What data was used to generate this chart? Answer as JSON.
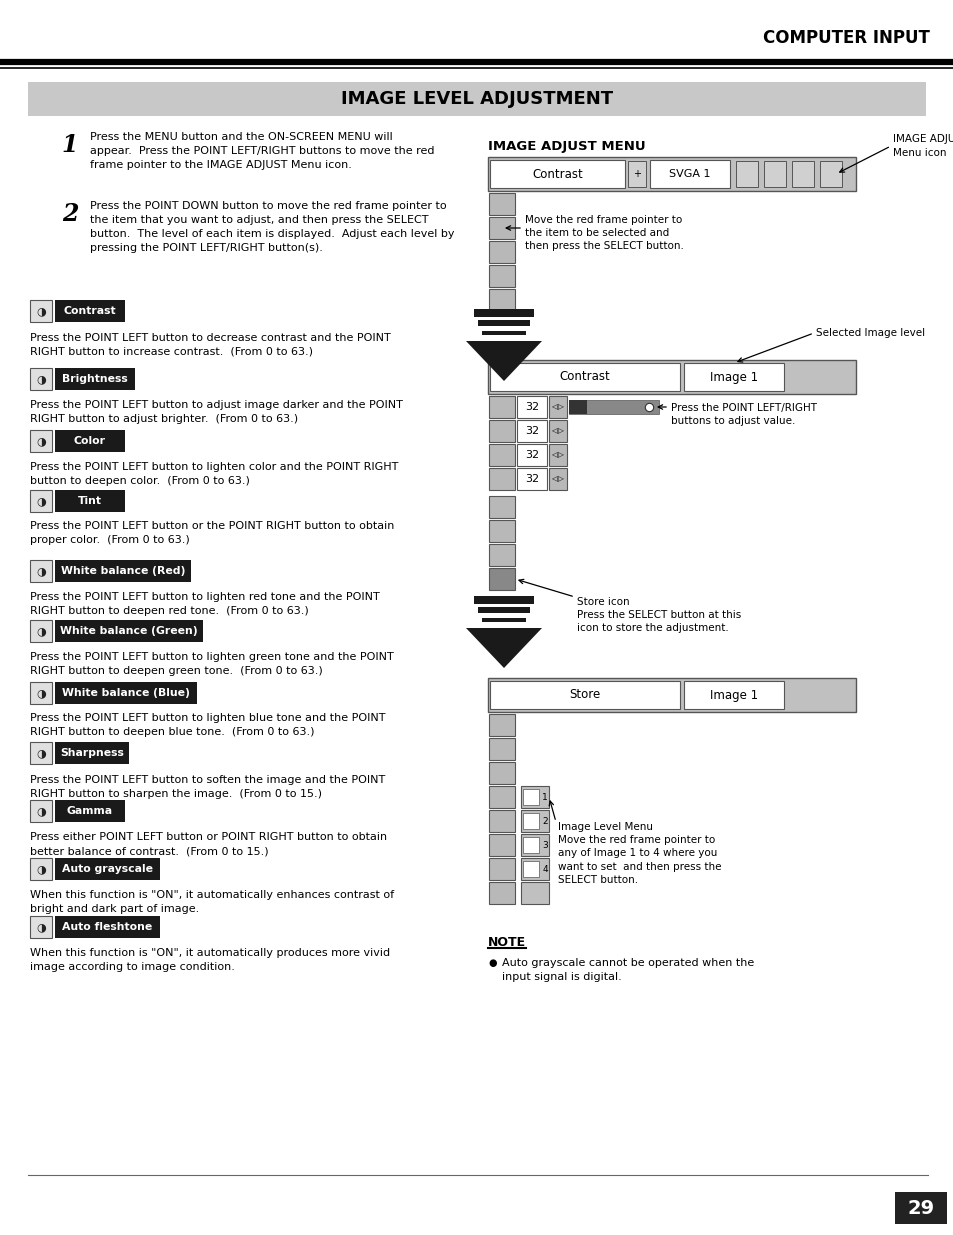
{
  "page_title": "COMPUTER INPUT",
  "section_title": "IMAGE LEVEL ADJUSTMENT",
  "step1": "Press the MENU button and the ON-SCREEN MENU will\nappear.  Press the POINT LEFT/RIGHT buttons to move the red\nframe pointer to the IMAGE ADJUST Menu icon.",
  "step2": "Press the POINT DOWN button to move the red frame pointer to\nthe item that you want to adjust, and then press the SELECT\nbutton.  The level of each item is displayed.  Adjust each level by\npressing the POINT LEFT/RIGHT button(s).",
  "items": [
    {
      "label": "Contrast",
      "desc": "Press the POINT LEFT button to decrease contrast and the POINT\nRIGHT button to increase contrast.  (From 0 to 63.)"
    },
    {
      "label": "Brightness",
      "desc": "Press the POINT LEFT button to adjust image darker and the POINT\nRIGHT button to adjust brighter.  (From 0 to 63.)"
    },
    {
      "label": "Color",
      "desc": "Press the POINT LEFT button to lighten color and the POINT RIGHT\nbutton to deepen color.  (From 0 to 63.)"
    },
    {
      "label": "Tint",
      "desc": "Press the POINT LEFT button or the POINT RIGHT button to obtain\nproper color.  (From 0 to 63.)"
    },
    {
      "label": "White balance (Red)",
      "desc": "Press the POINT LEFT button to lighten red tone and the POINT\nRIGHT button to deepen red tone.  (From 0 to 63.)"
    },
    {
      "label": "White balance (Green)",
      "desc": "Press the POINT LEFT button to lighten green tone and the POINT\nRIGHT button to deepen green tone.  (From 0 to 63.)"
    },
    {
      "label": "White balance (Blue)",
      "desc": "Press the POINT LEFT button to lighten blue tone and the POINT\nRIGHT button to deepen blue tone.  (From 0 to 63.)"
    },
    {
      "label": "Sharpness",
      "desc": "Press the POINT LEFT button to soften the image and the POINT\nRIGHT button to sharpen the image.  (From 0 to 15.)"
    },
    {
      "label": "Gamma",
      "desc": "Press either POINT LEFT button or POINT RIGHT button to obtain\nbetter balance of contrast.  (From 0 to 15.)"
    },
    {
      "label": "Auto grayscale",
      "desc": "When this function is \"ON\", it automatically enhances contrast of\nbright and dark part of image."
    },
    {
      "label": "Auto fleshtone",
      "desc": "When this function is \"ON\", it automatically produces more vivid\nimage according to image condition."
    }
  ],
  "right_title": "IMAGE ADJUST MENU",
  "note_title": "NOTE",
  "note_text": "Auto grayscale cannot be operated when the\ninput signal is digital.",
  "page_number": "29",
  "bg": "#ffffff",
  "section_bg": "#c8c8c8",
  "label_bg": "#1a1a1a",
  "arrow_dark": "#1a1a1a",
  "menu_bg": "#c0c0c0",
  "menu_white": "#ffffff",
  "icon_bg": "#b8b8b8"
}
